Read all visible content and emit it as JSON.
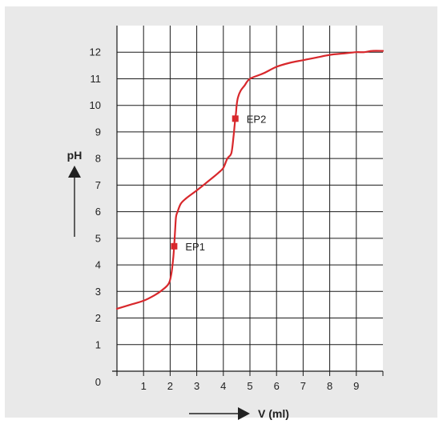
{
  "colors": {
    "background": "#e9e9e9",
    "plot_background": "#ffffff",
    "grid": "#1a1a1a",
    "curve": "#d8282c",
    "marker": "#d8282c",
    "text": "#222222"
  },
  "chart_data": {
    "type": "line",
    "title": "",
    "xlabel": "V (ml)",
    "ylabel": "pH",
    "xlim": [
      0,
      10
    ],
    "ylim": [
      0,
      13
    ],
    "x_ticks": [
      1,
      2,
      3,
      4,
      5,
      6,
      7,
      8,
      9
    ],
    "x_tick_labels": [
      "1",
      "2",
      "3",
      "4",
      "5",
      "6",
      "7",
      "8",
      "9"
    ],
    "y_ticks": [
      0,
      1,
      2,
      3,
      4,
      5,
      6,
      7,
      8,
      9,
      10,
      11,
      12
    ],
    "y_tick_labels": [
      "0",
      "1",
      "2",
      "3",
      "4",
      "5",
      "6",
      "7",
      "8",
      "9",
      "10",
      "11",
      "12"
    ],
    "grid": true,
    "series": [
      {
        "x": [
          0,
          0.5,
          1.0,
          1.4,
          1.7,
          1.95,
          2.05,
          2.12,
          2.15,
          2.18,
          2.22,
          2.28,
          2.4,
          2.6,
          3.0,
          3.5,
          3.8,
          4.0,
          4.15,
          4.3,
          4.38,
          4.42,
          4.45,
          4.48,
          4.5,
          4.55,
          4.65,
          4.8,
          5.0,
          5.5,
          6.0,
          6.5,
          7.0,
          7.5,
          8.0,
          8.5,
          9.0,
          9.3,
          9.6,
          10.0
        ],
        "y": [
          2.35,
          2.5,
          2.65,
          2.85,
          3.05,
          3.3,
          3.7,
          4.3,
          4.7,
          5.2,
          5.8,
          6.0,
          6.3,
          6.5,
          6.8,
          7.2,
          7.45,
          7.65,
          8.0,
          8.2,
          8.8,
          9.2,
          9.5,
          9.75,
          10.0,
          10.3,
          10.55,
          10.75,
          11.0,
          11.2,
          11.45,
          11.6,
          11.7,
          11.8,
          11.9,
          11.95,
          12.0,
          12.0,
          12.05,
          12.05
        ]
      }
    ],
    "points": [
      {
        "label": "EP1",
        "x": 2.15,
        "y": 4.7
      },
      {
        "label": "EP2",
        "x": 4.45,
        "y": 9.5
      }
    ]
  }
}
